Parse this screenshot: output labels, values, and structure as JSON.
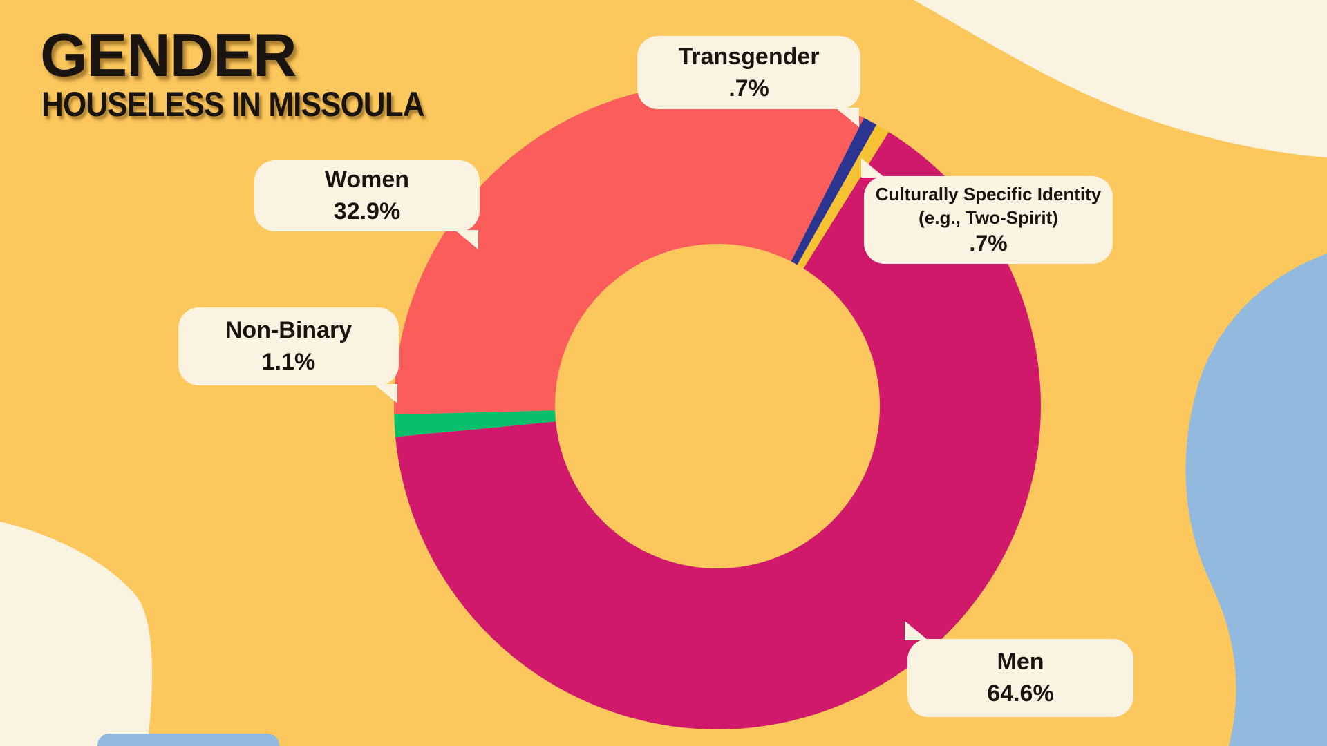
{
  "title": {
    "main": "GENDER",
    "subtitle": "HOUSELESS IN MISSOULA"
  },
  "chart_data": {
    "type": "pie",
    "variant": "donut",
    "title": "Gender",
    "subtitle": "Houseless in Missoula",
    "start_angle_deg": 268.5,
    "direction": "clockwise",
    "legend_position": "callouts",
    "segments": [
      {
        "label": "Women",
        "value": 32.9,
        "display": "32.9%",
        "color": "#FA5D5B"
      },
      {
        "label": "Transgender",
        "value": 0.7,
        "display": ".7%",
        "color": "#2B3491"
      },
      {
        "label": "Culturally Specific Identity (e.g., Two-Spirit)",
        "value": 0.7,
        "display": ".7%",
        "color": "#F5C234"
      },
      {
        "label": "Men",
        "value": 64.6,
        "display": "64.6%",
        "color": "#D1196B"
      },
      {
        "label": "Non-Binary",
        "value": 1.1,
        "display": "1.1%",
        "color": "#0ABF6B"
      }
    ]
  },
  "colors": {
    "background": "#FCC75C",
    "cream": "#FBF3E2",
    "ink": "#1A1410",
    "blob_blue": "#92BADF",
    "slice_women": "#FA5D5B",
    "slice_transgender": "#2B3491",
    "slice_culturally_specific": "#F5C234",
    "slice_men": "#D1196B",
    "slice_non_binary": "#0ABF6B"
  }
}
